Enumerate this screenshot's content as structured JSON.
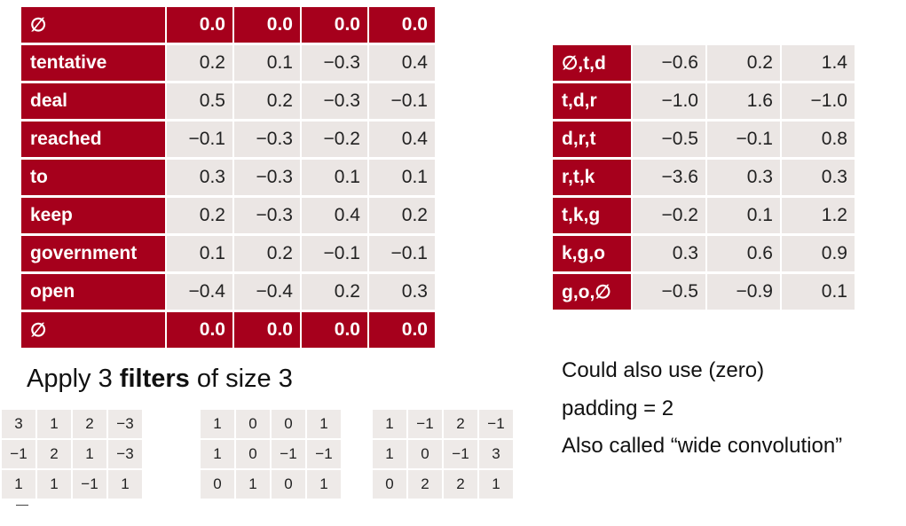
{
  "left_table": {
    "rows": [
      {
        "label": "∅",
        "values": [
          "0.0",
          "0.0",
          "0.0",
          "0.0"
        ],
        "pad": true
      },
      {
        "label": "tentative",
        "values": [
          "0.2",
          "0.1",
          "−0.3",
          "0.4"
        ]
      },
      {
        "label": "deal",
        "values": [
          "0.5",
          "0.2",
          "−0.3",
          "−0.1"
        ]
      },
      {
        "label": "reached",
        "values": [
          "−0.1",
          "−0.3",
          "−0.2",
          "0.4"
        ]
      },
      {
        "label": "to",
        "values": [
          "0.3",
          "−0.3",
          "0.1",
          "0.1"
        ]
      },
      {
        "label": "keep",
        "values": [
          "0.2",
          "−0.3",
          "0.4",
          "0.2"
        ]
      },
      {
        "label": "government",
        "values": [
          "0.1",
          "0.2",
          "−0.1",
          "−0.1"
        ]
      },
      {
        "label": "open",
        "values": [
          "−0.4",
          "−0.4",
          "0.2",
          "0.3"
        ]
      },
      {
        "label": "∅",
        "values": [
          "0.0",
          "0.0",
          "0.0",
          "0.0"
        ],
        "pad": true
      }
    ]
  },
  "right_table": {
    "rows": [
      {
        "label": "∅,t,d",
        "values": [
          "−0.6",
          "0.2",
          "1.4"
        ]
      },
      {
        "label": "t,d,r",
        "values": [
          "−1.0",
          "1.6",
          "−1.0"
        ]
      },
      {
        "label": "d,r,t",
        "values": [
          "−0.5",
          "−0.1",
          "0.8"
        ]
      },
      {
        "label": "r,t,k",
        "values": [
          "−3.6",
          "0.3",
          "0.3"
        ]
      },
      {
        "label": "t,k,g",
        "values": [
          "−0.2",
          "0.1",
          "1.2"
        ]
      },
      {
        "label": "k,g,o",
        "values": [
          "0.3",
          "0.6",
          "0.9"
        ]
      },
      {
        "label": "g,o,∅",
        "values": [
          "−0.5",
          "−0.9",
          "0.1"
        ]
      }
    ]
  },
  "caption": {
    "prefix": "Apply 3 ",
    "bold": "filters",
    "suffix": " of size 3"
  },
  "notes": [
    "Could also use (zero)",
    "padding = 2",
    "Also called “wide convolution”"
  ],
  "filters": [
    [
      [
        "3",
        "1",
        "2",
        "−3"
      ],
      [
        "−1",
        "2",
        "1",
        "−3"
      ],
      [
        "1",
        "1",
        "−1",
        "1"
      ]
    ],
    [
      [
        "1",
        "0",
        "0",
        "1"
      ],
      [
        "1",
        "0",
        "−1",
        "−1"
      ],
      [
        "0",
        "1",
        "0",
        "1"
      ]
    ],
    [
      [
        "1",
        "−1",
        "2",
        "−1"
      ],
      [
        "1",
        "0",
        "−1",
        "3"
      ],
      [
        "0",
        "2",
        "2",
        "1"
      ]
    ]
  ]
}
